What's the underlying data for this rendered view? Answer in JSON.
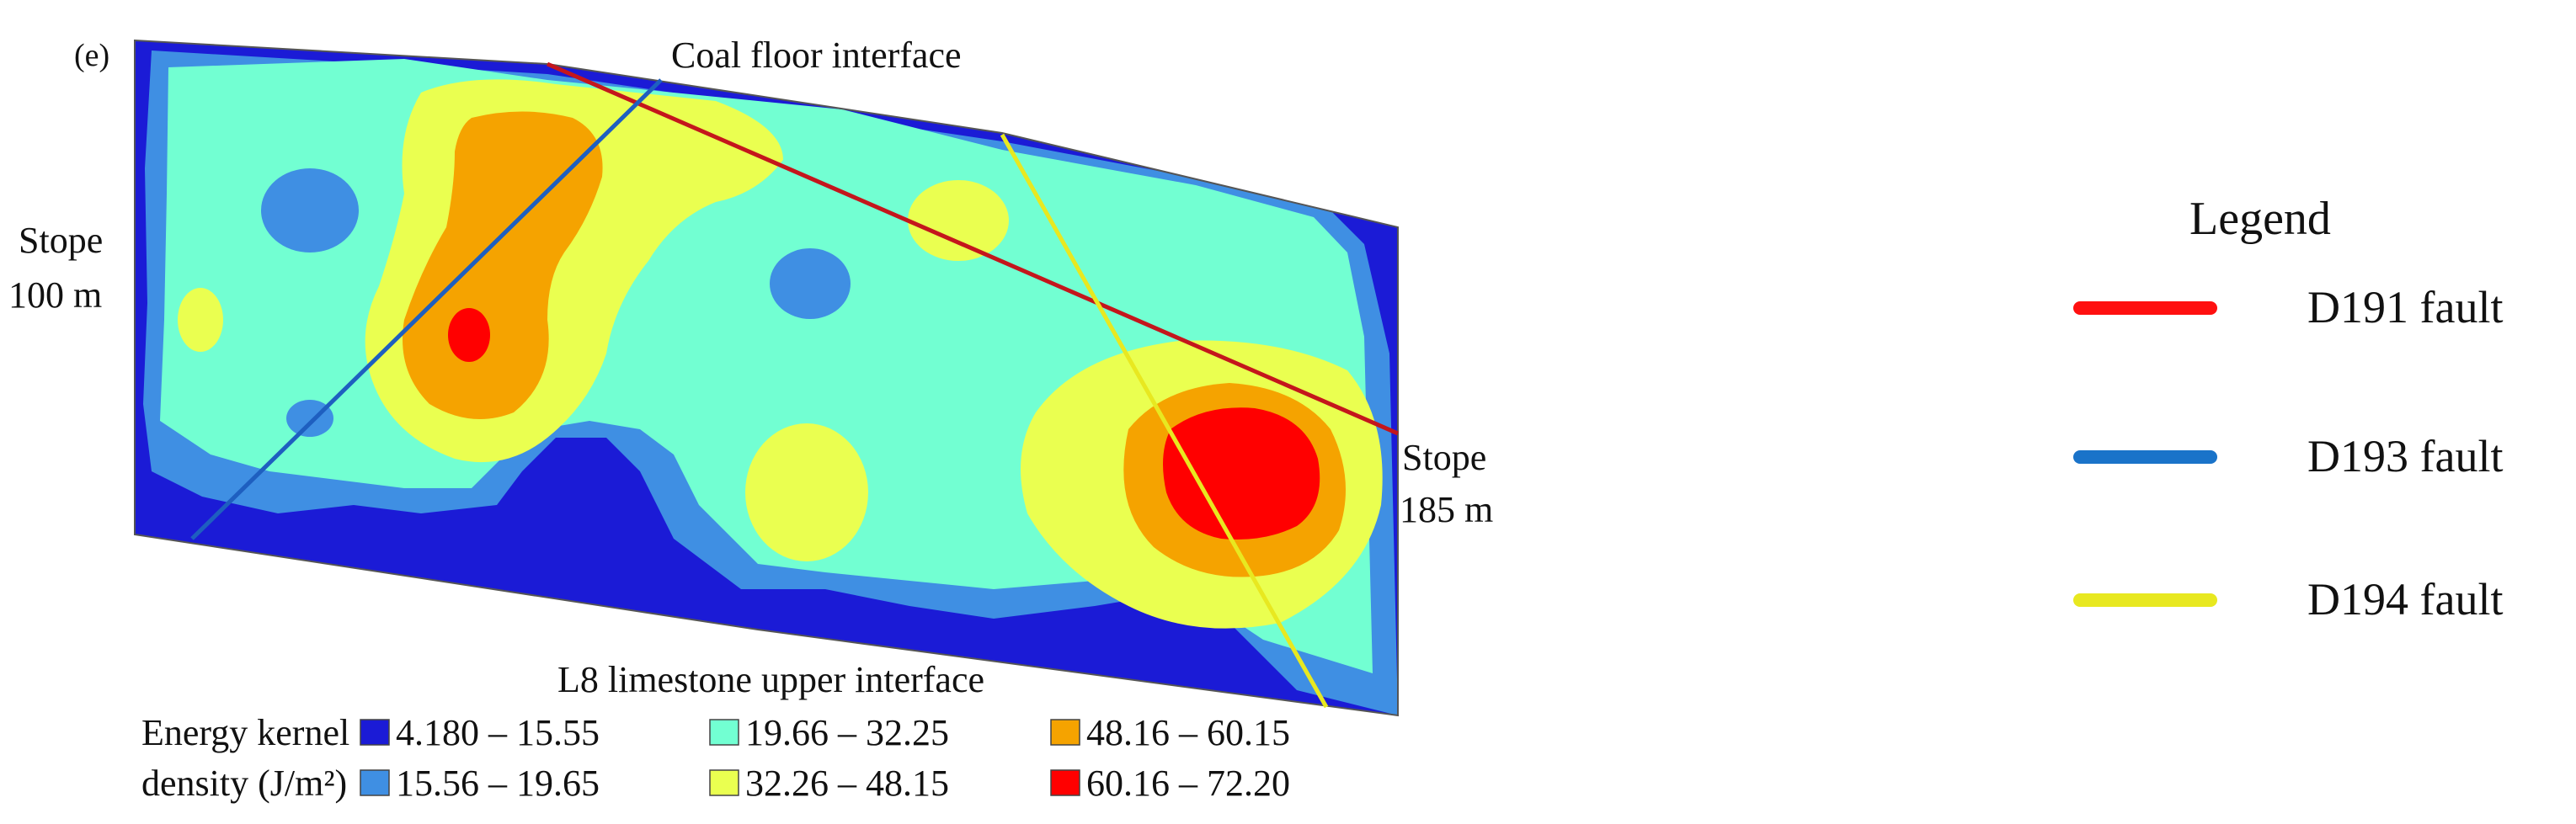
{
  "panel_label": "(e)",
  "labels": {
    "coal_floor": "Coal floor interface",
    "limestone": "L8 limestone upper interface",
    "stope_left_1": "Stope",
    "stope_left_2": "100 m",
    "stope_right_1": "Stope",
    "stope_right_2": "185 m"
  },
  "density_legend": {
    "title_1": "Energy kernel",
    "title_2": "density (J/m²)",
    "dash": "–",
    "classes": [
      {
        "min": "4.180",
        "max": "15.55",
        "color": "#1b1bd6"
      },
      {
        "min": "15.56",
        "max": "19.65",
        "color": "#3f8fe3"
      },
      {
        "min": "19.66",
        "max": "32.25",
        "color": "#72ffd2"
      },
      {
        "min": "32.26",
        "max": "48.15",
        "color": "#eaff50"
      },
      {
        "min": "48.16",
        "max": "60.15",
        "color": "#f5a300"
      },
      {
        "min": "60.16",
        "max": "72.20",
        "color": "#ff0000"
      }
    ]
  },
  "fault_legend": {
    "title": "Legend",
    "items": [
      {
        "label": "D191 fault",
        "color": "#ff1010"
      },
      {
        "label": "D193 fault",
        "color": "#1a73c9"
      },
      {
        "label": "D194 fault",
        "color": "#e8e820"
      }
    ]
  },
  "faults": {
    "d191_color": "#c4161c",
    "d193_color": "#1e5fc0",
    "d194_color": "#e8e820"
  }
}
